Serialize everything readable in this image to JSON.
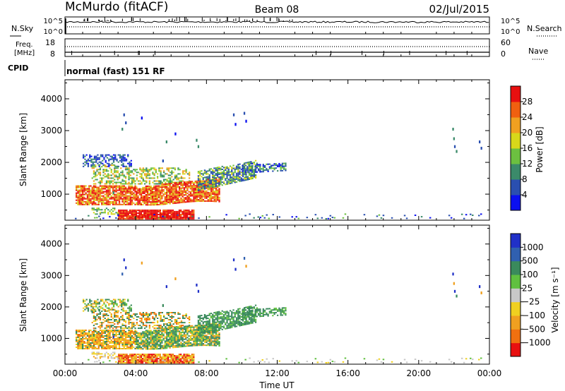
{
  "header": {
    "title": "McMurdo (fitACF)",
    "beam": "Beam 08",
    "date": "02/Jul/2015"
  },
  "panels": {
    "nsky": {
      "left_label": "N.Sky",
      "right_label": "N.Search",
      "left_ticks": [
        "10^5",
        "10^0"
      ],
      "right_ticks": [
        "10^5",
        "10^0"
      ]
    },
    "freq": {
      "left_label_1": "Freq.",
      "left_label_2": "[MHz]",
      "right_label": "Nave",
      "left_ticks": [
        "18",
        "8"
      ],
      "right_ticks": [
        "60",
        "0"
      ]
    },
    "cpid": {
      "label": "CPID",
      "text": "normal (fast) 151 RF"
    }
  },
  "chart_data": [
    {
      "type": "heatmap",
      "parameter": "power",
      "ylabel": "Slant Range [km]",
      "ylim": [
        180,
        4600
      ],
      "yticks": [
        "1000",
        "2000",
        "3000",
        "4000"
      ],
      "xlim_hours": [
        0,
        24
      ],
      "colorbar": {
        "label": "Power [dB]",
        "ticks": [
          "4",
          "8",
          "12",
          "16",
          "20",
          "24",
          "28"
        ],
        "colors": [
          "#0b10f0",
          "#2a4fb0",
          "#3b8a6a",
          "#6cc040",
          "#d8d81a",
          "#f0a020",
          "#f06010",
          "#e81010"
        ]
      }
    },
    {
      "type": "heatmap",
      "parameter": "velocity",
      "ylabel": "Slant Range [km]",
      "ylim": [
        180,
        4600
      ],
      "yticks": [
        "1000",
        "2000",
        "3000",
        "4000"
      ],
      "xlabel": "Time UT",
      "xticks": [
        "00:00",
        "04:00",
        "08:00",
        "12:00",
        "16:00",
        "20:00",
        "00:00"
      ],
      "colorbar": {
        "label": "Velocity [m s⁻¹]",
        "ticks": [
          "1000",
          "500",
          "100",
          "25",
          "−25",
          "−100",
          "−500",
          "−1000"
        ],
        "colors": [
          "#2030c8",
          "#3060b0",
          "#3a8a5c",
          "#60c040",
          "#c8c8c8",
          "#f0d020",
          "#f0a020",
          "#f07010",
          "#e81010"
        ]
      }
    }
  ]
}
